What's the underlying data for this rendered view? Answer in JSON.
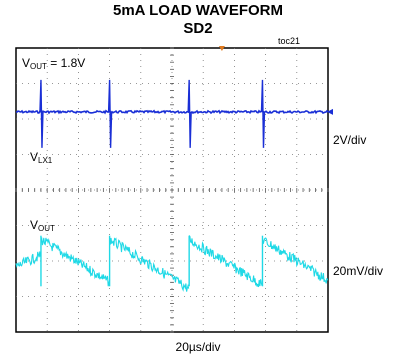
{
  "chart_data": {
    "type": "line",
    "title": "5mA LOAD WAVEFORM",
    "subtitle": "SD2",
    "tag": "toc21",
    "time_scale": "20µs/div",
    "divisions": {
      "x": 10,
      "y": 8
    },
    "grid": true,
    "channels": [
      {
        "name_main": "V",
        "name_sub": "LX1",
        "scale": "2V/div",
        "annotation": {
          "main": "V",
          "sub": "OUT",
          "text": " = 1.8V"
        },
        "color": "#1a2fd6",
        "baseline_div": 1.8,
        "spike_times_div": [
          0.8,
          3.0,
          5.55,
          7.9
        ]
      },
      {
        "name_main": "V",
        "name_sub": "OUT",
        "scale": "20mV/div",
        "color": "#1fd9e6",
        "ramp_start_times_div": [
          0.0,
          0.8,
          3.0,
          5.55,
          7.9
        ],
        "ramp_high_div": 5.4,
        "ramp_low_div": 6.6
      }
    ]
  }
}
